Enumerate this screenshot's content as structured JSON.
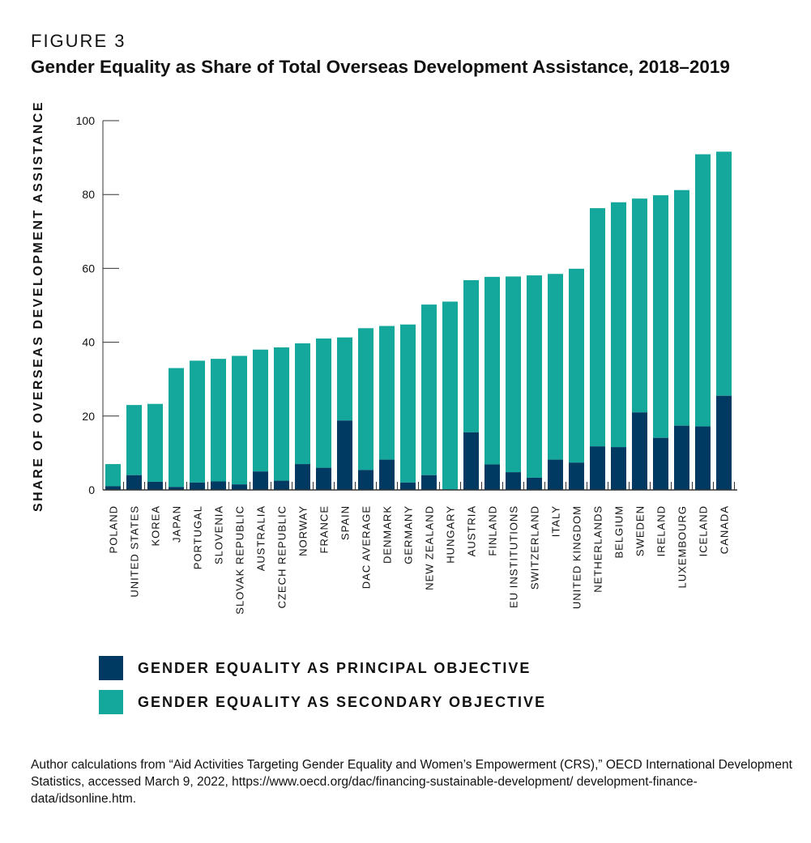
{
  "figure_label": "FIGURE 3",
  "colors": {
    "principal": "#003a63",
    "secondary": "#14a89c",
    "axis": "#333333"
  },
  "chart_data": {
    "type": "bar",
    "stacked": true,
    "title": "Gender Equality as Share of Total Overseas Development Assistance, 2018–2019",
    "xlabel": "",
    "ylabel": "SHARE OF OVERSEAS DEVELOPMENT ASSISTANCE",
    "ylim": [
      0,
      100
    ],
    "yticks": [
      0,
      20,
      40,
      60,
      80,
      100
    ],
    "grid": false,
    "legend_position": "bottom-left",
    "categories": [
      "POLAND",
      "UNITED STATES",
      "KOREA",
      "JAPAN",
      "PORTUGAL",
      "SLOVENIA",
      "SLOVAK REPUBLIC",
      "AUSTRALIA",
      "CZECH REPUBLIC",
      "NORWAY",
      "FRANCE",
      "SPAIN",
      "DAC AVERAGE",
      "DENMARK",
      "GERMANY",
      "NEW ZEALAND",
      "HUNGARY",
      "AUSTRIA",
      "FINLAND",
      "EU INSTITUTIONS",
      "SWITZERLAND",
      "ITALY",
      "UNITED KINGDOM",
      "NETHERLANDS",
      "BELGIUM",
      "SWEDEN",
      "IRELAND",
      "LUXEMBOURG",
      "ICELAND",
      "CANADA"
    ],
    "series": [
      {
        "name": "GENDER EQUALITY AS PRINCIPAL OBJECTIVE",
        "values": [
          1.0,
          4.0,
          2.2,
          0.8,
          2.0,
          2.3,
          1.5,
          5.0,
          2.5,
          7.0,
          6.0,
          18.8,
          5.4,
          8.2,
          2.0,
          4.0,
          0,
          15.6,
          6.9,
          4.8,
          3.3,
          8.2,
          7.4,
          11.8,
          11.6,
          21.0,
          14.1,
          17.4,
          17.2,
          25.5
        ]
      },
      {
        "name": "GENDER EQUALITY AS SECONDARY OBJECTIVE",
        "values": [
          6.0,
          19.0,
          21.1,
          32.2,
          33.0,
          33.2,
          34.8,
          33.0,
          36.1,
          32.7,
          35.0,
          22.5,
          38.4,
          36.2,
          42.8,
          46.2,
          51.0,
          41.2,
          50.8,
          53.0,
          54.8,
          50.3,
          52.5,
          64.5,
          66.3,
          57.9,
          65.7,
          63.8,
          73.7,
          66.1
        ]
      }
    ]
  },
  "source_note": "Author calculations from “Aid Activities Targeting Gender Equality and Women’s Empowerment (CRS),” OECD International Development Statistics, accessed March 9, 2022, https://www.oecd.org/dac/financing-sustainable-development/ development-finance-data/idsonline.htm."
}
